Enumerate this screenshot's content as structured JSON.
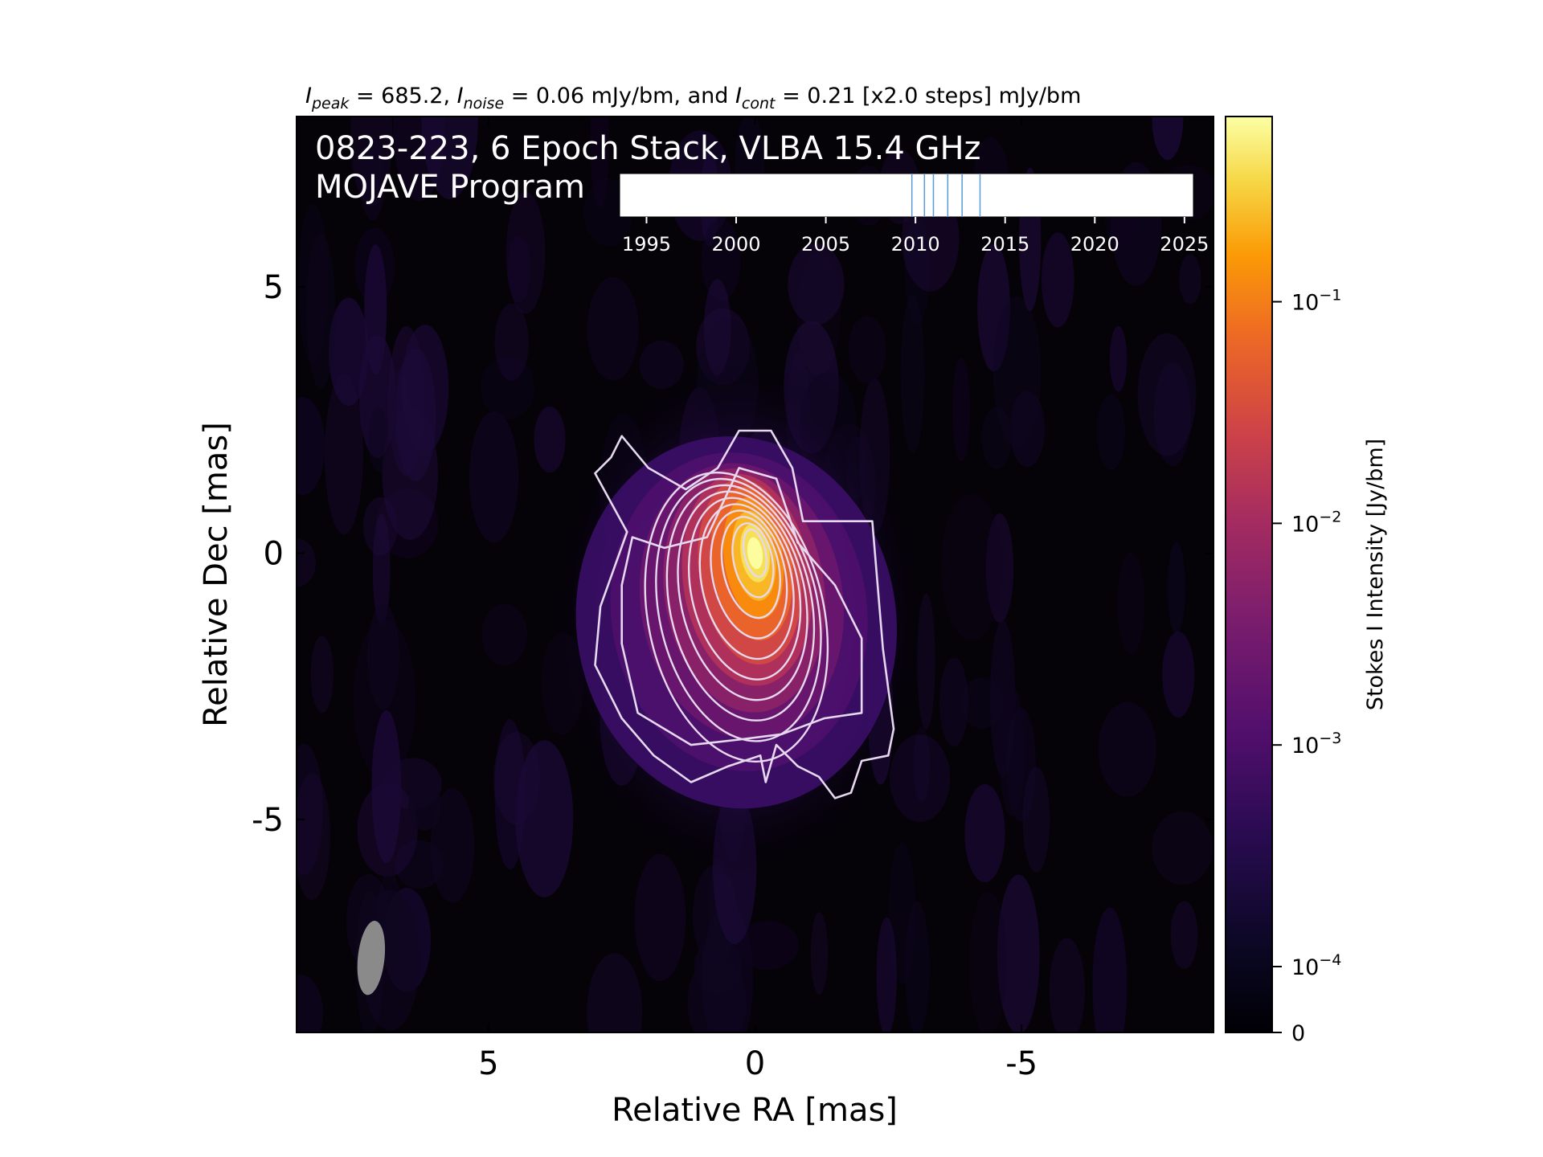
{
  "chart_data": {
    "type": "heatmap",
    "header": {
      "segments": [
        {
          "main": "I",
          "sub": "peak",
          "rest": " = 685.2, "
        },
        {
          "main": "I",
          "sub": "noise",
          "rest": " = 0.06 mJy/bm, and "
        },
        {
          "main": "I",
          "sub": "cont",
          "rest": " = 0.21 [x2.0 steps] mJy/bm"
        }
      ]
    },
    "overlay": {
      "line1": "0823-223, 6 Epoch Stack, VLBA 15.4 GHz",
      "line2": "MOJAVE Program"
    },
    "xlabel": "Relative RA [mas]",
    "ylabel": "Relative Dec [mas]",
    "xlim": [
      8.6,
      -8.6
    ],
    "ylim": [
      -9.0,
      8.2
    ],
    "xticks": [
      {
        "value": 5,
        "label": "5"
      },
      {
        "value": 0,
        "label": "0"
      },
      {
        "value": -5,
        "label": "-5"
      }
    ],
    "yticks": [
      {
        "value": 5,
        "label": "5"
      },
      {
        "value": 0,
        "label": "0"
      },
      {
        "value": -5,
        "label": "-5"
      }
    ],
    "source": {
      "peak_jy": 0.6852,
      "peak_position_mas": [
        0.0,
        0.0
      ],
      "extent": "jet extending to the south-east/south, roughly RA 2.9 to -2.6 mas, Dec 2.3 to -4.6 mas"
    },
    "contours": {
      "color": "#e6d8ee",
      "base_mjy": 0.21,
      "step_factor": 2.0,
      "count": 12
    },
    "beam": {
      "x": 7.2,
      "y": -7.6,
      "major": 1.4,
      "minor": 0.5,
      "color": "#8a8a8a"
    },
    "colorbar": {
      "label": "Stokes I Intensity [Jy/bm]",
      "cmap": "inferno",
      "ticks": [
        {
          "value": 0,
          "label": "0"
        },
        {
          "value": 0.0001,
          "mant": "10",
          "exp": "−4"
        },
        {
          "value": 0.001,
          "mant": "10",
          "exp": "−3"
        },
        {
          "value": 0.01,
          "mant": "10",
          "exp": "−2"
        },
        {
          "value": 0.1,
          "mant": "10",
          "exp": "−1"
        }
      ]
    },
    "timeline": {
      "range": [
        1993.5,
        2025.5
      ],
      "ticks": [
        1995,
        2000,
        2005,
        2010,
        2015,
        2020,
        2025
      ],
      "epochs": [
        2009.8,
        2010.5,
        2011.0,
        2011.8,
        2012.6,
        2013.6
      ],
      "epoch_color": "#5b9bd5"
    }
  }
}
